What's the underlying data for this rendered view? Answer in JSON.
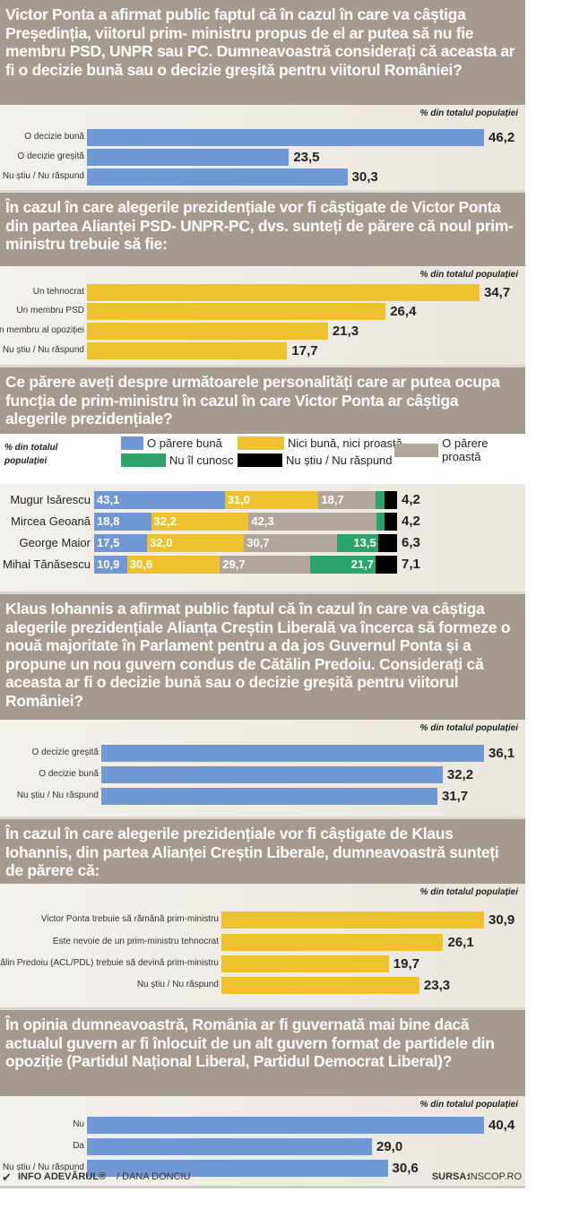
{
  "unit_label": "% din totalul populației",
  "colors": {
    "header": "#a59a8f",
    "blue": "#6f98d4",
    "yellow": "#eec22f",
    "gray": "#b1a69b",
    "green": "#2ba36a",
    "black": "#000000"
  },
  "chart_data": [
    {
      "type": "bar",
      "orientation": "horizontal",
      "title": "Victor Ponta a afirmat public faptul că în cazul în care va câștiga Președinția, viitorul prim- ministru propus de el ar putea să nu fie membru PSD, UNPR sau PC. Dumneavoastră considerați că aceasta ar fi o decizie bună sau o decizie greșită pentru viitorul României?",
      "unit": "% din totalul populației",
      "color": "#6f98d4",
      "categories": [
        "O decizie bună",
        "O decizie greșită",
        "Nu știu / Nu răspund"
      ],
      "values": [
        46.2,
        23.5,
        30.3
      ],
      "labels": [
        "46,2",
        "23,5",
        "30,3"
      ]
    },
    {
      "type": "bar",
      "orientation": "horizontal",
      "title": "În cazul în care alegerile prezidențiale vor fi câștigate de Victor Ponta din partea Alianței PSD- UNPR-PC, dvs. sunteți de părere că noul prim-ministru trebuie să fie:",
      "unit": "% din totalul populației",
      "color": "#eec22f",
      "categories": [
        "Un tehnocrat",
        "Un membru PSD",
        "Un membru al opoziției",
        "Nu știu / Nu răspund"
      ],
      "values": [
        34.7,
        26.4,
        21.3,
        17.7
      ],
      "labels": [
        "34,7",
        "26,4",
        "21,3",
        "17,7"
      ]
    },
    {
      "type": "bar",
      "stacked": true,
      "orientation": "horizontal",
      "title": "Ce părere aveți despre următoarele personalități care ar putea ocupa funcția de prim-ministru în cazul în care Victor Ponta ar câștiga alegerile prezidențiale?",
      "unit": "% din totalul populației",
      "legend_title": "% din totalul populației",
      "categories": [
        "Mugur Isărescu",
        "Mircea Geoană",
        "George Maior",
        "Mihai Tănăsescu"
      ],
      "series": [
        {
          "name": "O părere bună",
          "color": "#6f98d4",
          "values": [
            43.1,
            18.8,
            17.5,
            10.9
          ],
          "labels": [
            "43,1",
            "18,8",
            "17,5",
            "10,9"
          ]
        },
        {
          "name": "Nici bună, nici proastă",
          "color": "#eec22f",
          "values": [
            31.0,
            32.2,
            32.0,
            30.6
          ],
          "labels": [
            "31,0",
            "32,2",
            "32,0",
            "30,6"
          ]
        },
        {
          "name": "O părere proastă",
          "color": "#b1a69b",
          "values": [
            18.7,
            42.3,
            30.7,
            29.7
          ],
          "labels": [
            "18,7",
            "42,3",
            "30,7",
            "29,7"
          ]
        },
        {
          "name": "Nu îl cunosc",
          "color": "#2ba36a",
          "values": [
            3.0,
            2.5,
            13.5,
            21.7
          ],
          "labels": [
            "3,0",
            "2,5",
            "13,5",
            "21,7"
          ]
        },
        {
          "name": "Nu știu / Nu răspund",
          "color": "#000000",
          "values": [
            4.2,
            4.2,
            6.3,
            7.1
          ],
          "labels": [
            "4,2",
            "4,2",
            "6,3",
            "7,1"
          ]
        }
      ]
    },
    {
      "type": "bar",
      "orientation": "horizontal",
      "title": "Klaus Iohannis a afirmat public faptul că în cazul în care va câștiga alegerile prezidențiale Alianța Creștin Liberală va încerca să formeze o nouă majoritate în Parlament pentru a da jos Guvernul Ponta și a propune un nou guvern condus de Cătălin Predoiu. Considerați că aceasta ar fi o decizie bună sau o decizie greșită pentru viitorul României?",
      "unit": "% din totalul populației",
      "color": "#6f98d4",
      "categories": [
        "O decizie greșită",
        "O decizie bună",
        "Nu știu / Nu răspund"
      ],
      "values": [
        36.1,
        32.2,
        31.7
      ],
      "labels": [
        "36,1",
        "32,2",
        "31,7"
      ]
    },
    {
      "type": "bar",
      "orientation": "horizontal",
      "title": "În cazul în care alegerile prezidențiale vor fi câștigate de Klaus Iohannis, din partea Alianței Creștin Liberale, dumneavoastră sunteți de părere că:",
      "unit": "% din totalul populației",
      "color": "#eec22f",
      "categories": [
        "Victor Ponta trebuie să rămână prim-ministru",
        "Este nevoie de un prim-ministru tehnocrat",
        "Cătălin Predoiu (ACL/PDL) trebuie să devină prim-ministru",
        "Nu știu / Nu răspund"
      ],
      "values": [
        30.9,
        26.1,
        19.7,
        23.3
      ],
      "labels": [
        "30,9",
        "26,1",
        "19,7",
        "23,3"
      ]
    },
    {
      "type": "bar",
      "orientation": "horizontal",
      "title": "În opinia dumneavoastră, România ar fi guvernată mai bine dacă actualul guvern ar fi înlocuit de un alt guvern format de partidele din opoziție (Partidul Național Liberal, Partidul Democrat Liberal)?",
      "unit": "% din totalul populației",
      "color": "#6f98d4",
      "categories": [
        "Nu",
        "Da",
        "Nu știu / Nu răspund"
      ],
      "values": [
        40.4,
        29.0,
        30.6
      ],
      "labels": [
        "40,4",
        "29,0",
        "30,6"
      ]
    }
  ],
  "footer": {
    "brand": "INFO ADEVĂRUL®",
    "author": "/ DANA DONCIU",
    "source_label": "SURSA:",
    "source": "INSCOP.RO"
  }
}
